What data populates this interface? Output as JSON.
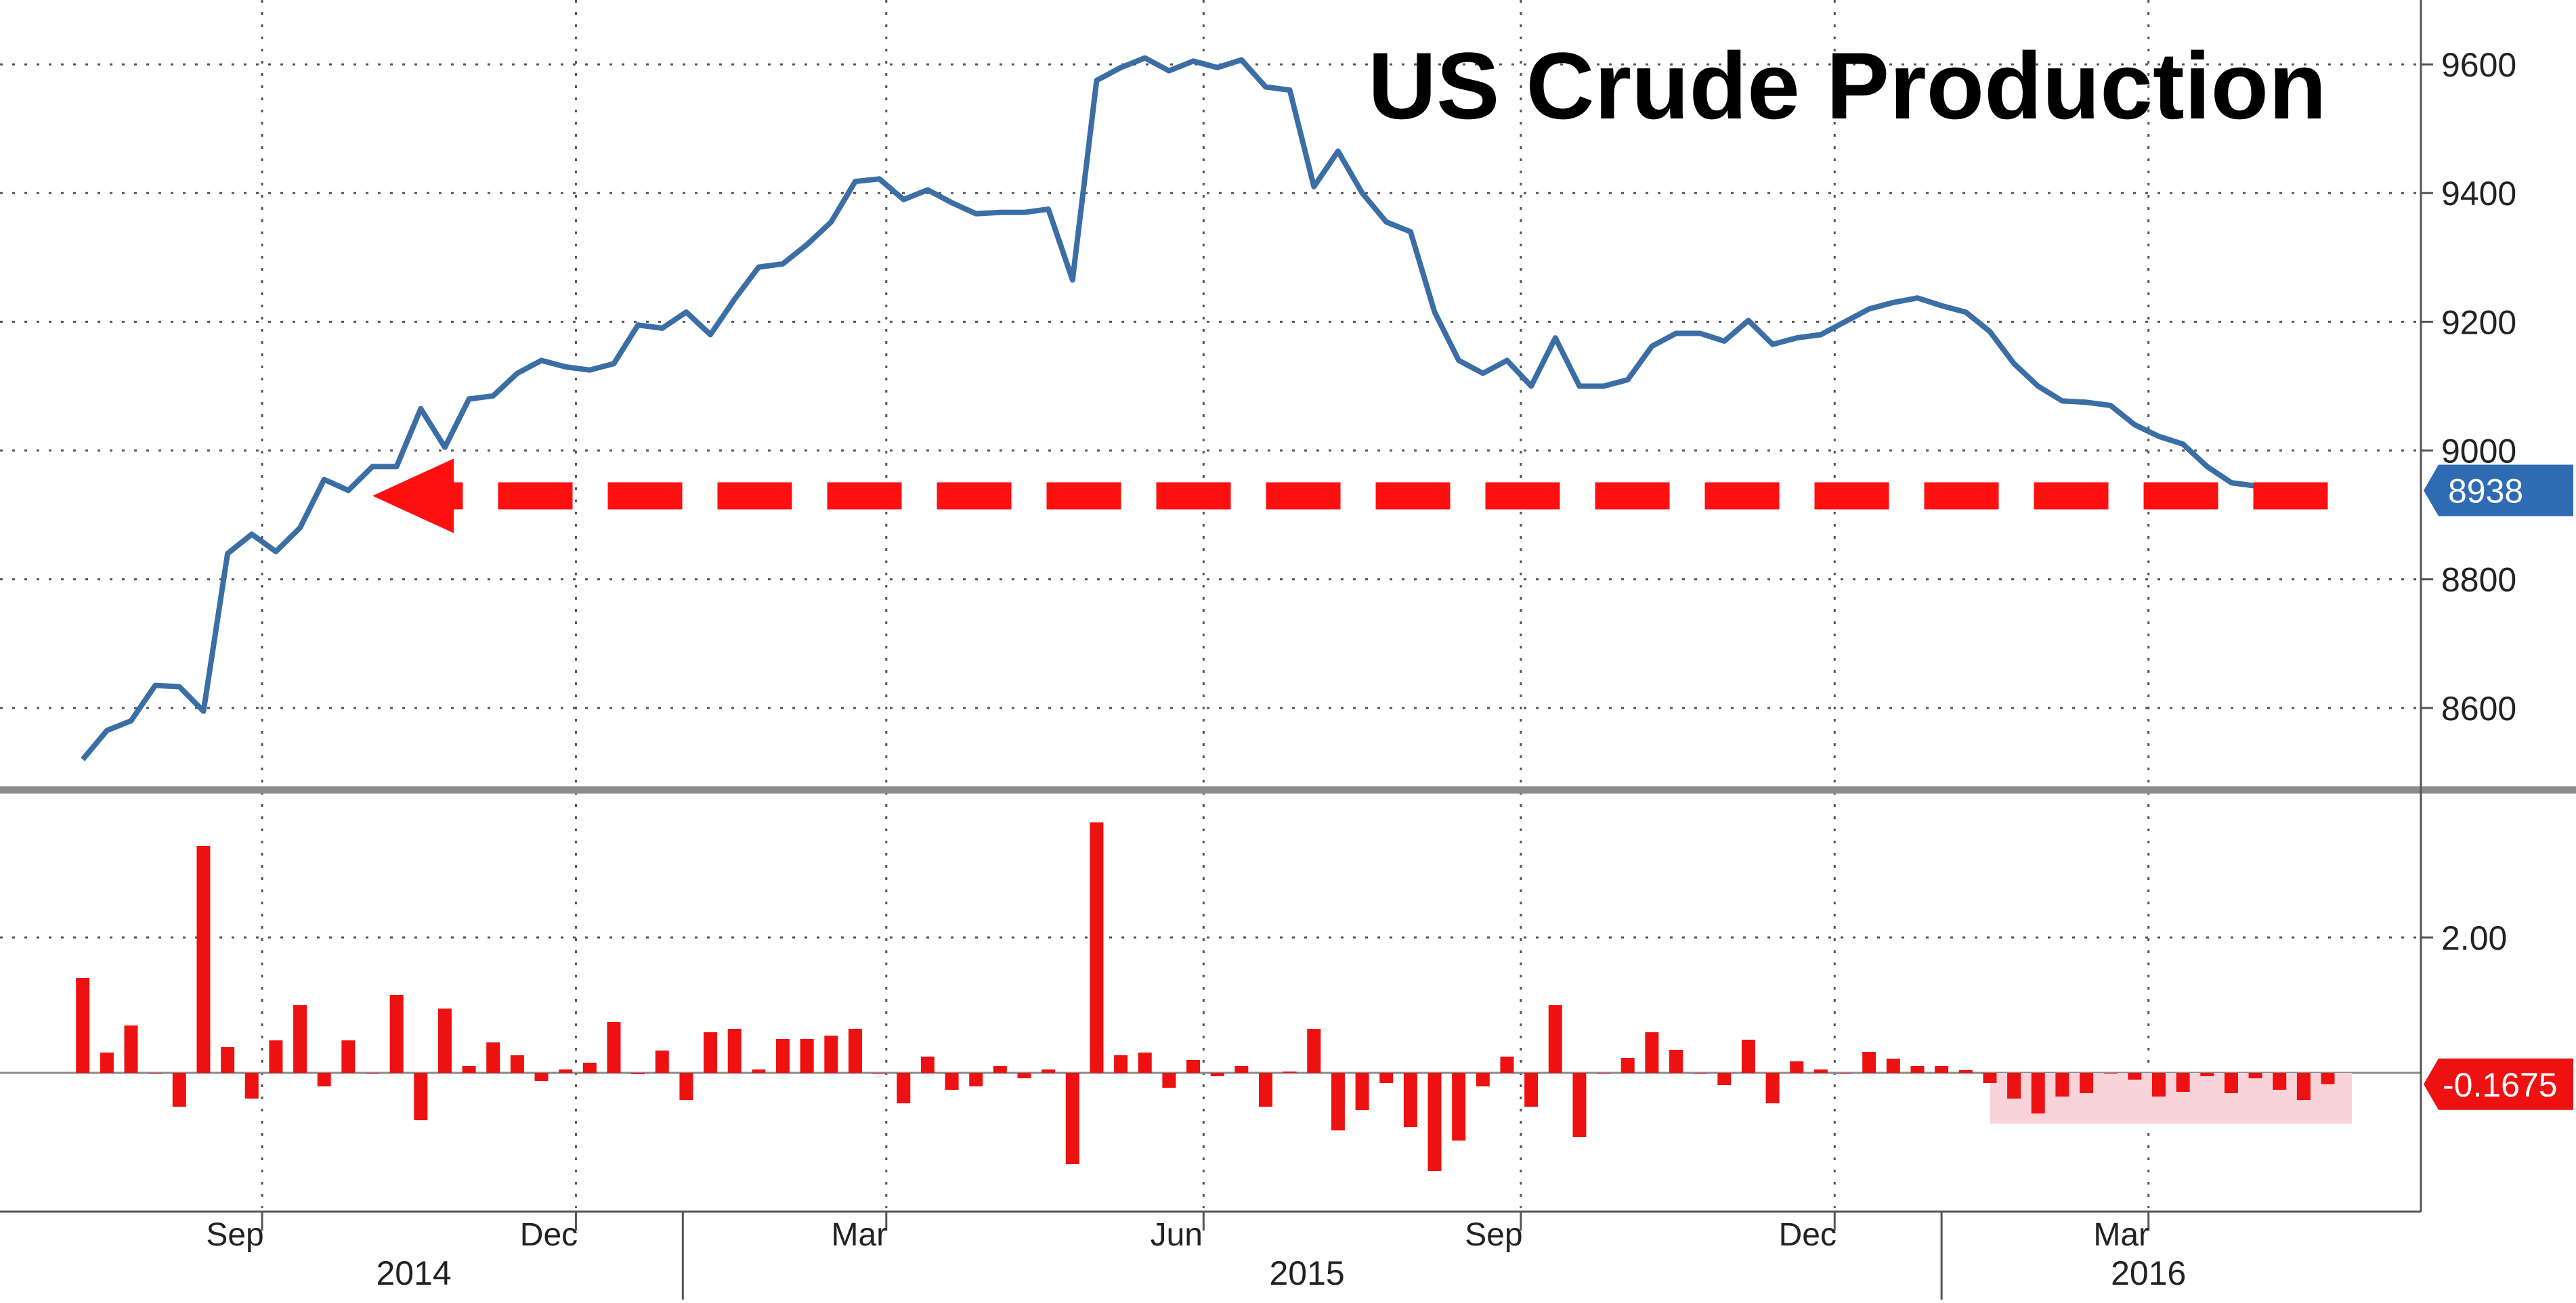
{
  "chart_data": [
    {
      "type": "line",
      "title": "US Crude Production",
      "ylim": [
        8480,
        9700
      ],
      "y_ticks": [
        8600,
        8800,
        9000,
        9200,
        9400,
        9600
      ],
      "y_tick_labels": [
        "8600",
        "8800",
        "9000",
        "9200",
        "9400",
        "9600"
      ],
      "axis_side": "right",
      "grid": true,
      "last_value_label": "8938",
      "series_color": "#3b6ea5",
      "annotation": {
        "type": "dashed-arrow",
        "color": "#ff1010",
        "from_date": "2016-04-22",
        "to_date": "2014-10-03",
        "value": 8938
      },
      "x": [
        "2014-07-11",
        "2014-07-18",
        "2014-07-25",
        "2014-08-01",
        "2014-08-08",
        "2014-08-15",
        "2014-08-22",
        "2014-08-29",
        "2014-09-05",
        "2014-09-12",
        "2014-09-19",
        "2014-09-26",
        "2014-10-03",
        "2014-10-10",
        "2014-10-17",
        "2014-10-24",
        "2014-10-31",
        "2014-11-07",
        "2014-11-14",
        "2014-11-21",
        "2014-11-28",
        "2014-12-05",
        "2014-12-12",
        "2014-12-19",
        "2014-12-26",
        "2015-01-02",
        "2015-01-09",
        "2015-01-16",
        "2015-01-23",
        "2015-01-30",
        "2015-02-06",
        "2015-02-13",
        "2015-02-20",
        "2015-02-27",
        "2015-03-06",
        "2015-03-13",
        "2015-03-20",
        "2015-03-27",
        "2015-04-03",
        "2015-04-10",
        "2015-04-17",
        "2015-04-24",
        "2015-05-01",
        "2015-05-08",
        "2015-05-15",
        "2015-05-22",
        "2015-05-29",
        "2015-06-05",
        "2015-06-12",
        "2015-06-19",
        "2015-06-26",
        "2015-07-03",
        "2015-07-10",
        "2015-07-17",
        "2015-07-24",
        "2015-07-31",
        "2015-08-07",
        "2015-08-14",
        "2015-08-21",
        "2015-08-28",
        "2015-09-04",
        "2015-09-11",
        "2015-09-18",
        "2015-09-25",
        "2015-10-02",
        "2015-10-09",
        "2015-10-16",
        "2015-10-23",
        "2015-10-30",
        "2015-11-06",
        "2015-11-13",
        "2015-11-20",
        "2015-11-27",
        "2015-12-04",
        "2015-12-11",
        "2015-12-18",
        "2015-12-25",
        "2016-01-01",
        "2016-01-08",
        "2016-01-15",
        "2016-01-22",
        "2016-01-29",
        "2016-02-05",
        "2016-02-12",
        "2016-02-19",
        "2016-02-26",
        "2016-03-04",
        "2016-03-11",
        "2016-03-18",
        "2016-03-25",
        "2016-04-01",
        "2016-04-08",
        "2016-04-15",
        "2016-04-22"
      ],
      "values": [
        8520,
        8565,
        8580,
        8635,
        8633,
        8595,
        8840,
        8870,
        8843,
        8880,
        8955,
        8938,
        8975,
        8975,
        9065,
        9005,
        9080,
        9085,
        9120,
        9140,
        9130,
        9125,
        9135,
        9195,
        9190,
        9215,
        9180,
        9235,
        9285,
        9290,
        9320,
        9355,
        9418,
        9422,
        9390,
        9405,
        9385,
        9368,
        9370,
        9370,
        9375,
        9265,
        9575,
        9595,
        9610,
        9590,
        9605,
        9595,
        9607,
        9565,
        9560,
        9410,
        9465,
        9400,
        9355,
        9340,
        9215,
        9140,
        9120,
        9140,
        9100,
        9175,
        9100,
        9100,
        9110,
        9162,
        9182,
        9182,
        9170,
        9202,
        9165,
        9175,
        9180,
        9200,
        9220,
        9230,
        9237,
        9225,
        9215,
        9185,
        9135,
        9100,
        9077,
        9075,
        9070,
        9040,
        9022,
        9010,
        8975,
        8950,
        8945,
        8942,
        8940,
        8938
      ]
    },
    {
      "type": "bar",
      "title": "",
      "ylim": [
        -2.0,
        4.1
      ],
      "y_ticks": [
        2.0
      ],
      "y_tick_labels": [
        "2.00"
      ],
      "axis_side": "right",
      "grid": true,
      "bar_color": "#ee1111",
      "highlight": {
        "from_date": "2016-01-15",
        "to_date": "2016-04-29",
        "color": "#f8d4da"
      },
      "last_value_label": "-0.1675",
      "x": [
        "2014-07-11",
        "2014-07-18",
        "2014-07-25",
        "2014-08-01",
        "2014-08-08",
        "2014-08-15",
        "2014-08-22",
        "2014-08-29",
        "2014-09-05",
        "2014-09-12",
        "2014-09-19",
        "2014-09-26",
        "2014-10-03",
        "2014-10-10",
        "2014-10-17",
        "2014-10-24",
        "2014-10-31",
        "2014-11-07",
        "2014-11-14",
        "2014-11-21",
        "2014-11-28",
        "2014-12-05",
        "2014-12-12",
        "2014-12-19",
        "2014-12-26",
        "2015-01-02",
        "2015-01-09",
        "2015-01-16",
        "2015-01-23",
        "2015-01-30",
        "2015-02-06",
        "2015-02-13",
        "2015-02-20",
        "2015-02-27",
        "2015-03-06",
        "2015-03-13",
        "2015-03-20",
        "2015-03-27",
        "2015-04-03",
        "2015-04-10",
        "2015-04-17",
        "2015-04-24",
        "2015-05-01",
        "2015-05-08",
        "2015-05-15",
        "2015-05-22",
        "2015-05-29",
        "2015-06-05",
        "2015-06-12",
        "2015-06-19",
        "2015-06-26",
        "2015-07-03",
        "2015-07-10",
        "2015-07-17",
        "2015-07-24",
        "2015-07-31",
        "2015-08-07",
        "2015-08-14",
        "2015-08-21",
        "2015-08-28",
        "2015-09-04",
        "2015-09-11",
        "2015-09-18",
        "2015-09-25",
        "2015-10-02",
        "2015-10-09",
        "2015-10-16",
        "2015-10-23",
        "2015-10-30",
        "2015-11-06",
        "2015-11-13",
        "2015-11-20",
        "2015-11-27",
        "2015-12-04",
        "2015-12-11",
        "2015-12-18",
        "2015-12-25",
        "2016-01-01",
        "2016-01-08",
        "2016-01-15",
        "2016-01-22",
        "2016-01-29",
        "2016-02-05",
        "2016-02-12",
        "2016-02-19",
        "2016-02-26",
        "2016-03-04",
        "2016-03-11",
        "2016-03-18",
        "2016-03-25",
        "2016-04-01",
        "2016-04-08",
        "2016-04-15",
        "2016-04-22"
      ],
      "values": [
        1.4,
        0.3,
        0.7,
        0.0,
        -0.5,
        3.35,
        0.38,
        -0.38,
        0.48,
        1.0,
        -0.2,
        0.48,
        0.0,
        1.15,
        -0.7,
        0.95,
        0.1,
        0.45,
        0.26,
        -0.12,
        0.05,
        0.15,
        0.75,
        -0.02,
        0.33,
        -0.4,
        0.6,
        0.65,
        0.05,
        0.5,
        0.5,
        0.55,
        0.65,
        0.0,
        -0.45,
        0.24,
        -0.25,
        -0.2,
        0.1,
        -0.08,
        0.05,
        -1.35,
        3.7,
        0.26,
        0.3,
        -0.22,
        0.19,
        -0.05,
        0.1,
        -0.5,
        0.02,
        0.65,
        -0.85,
        -0.55,
        -0.15,
        -0.8,
        -1.45,
        -1.0,
        -0.2,
        0.24,
        -0.5,
        1.0,
        -0.95,
        0.0,
        0.22,
        0.6,
        0.34,
        0.0,
        -0.18,
        0.49,
        -0.45,
        0.17,
        0.05,
        0.0,
        0.31,
        0.21,
        0.1,
        0.1,
        0.04,
        -0.15,
        -0.38,
        -0.6,
        -0.35,
        -0.3,
        0.0,
        -0.1,
        -0.35,
        -0.28,
        -0.05,
        -0.3,
        -0.08,
        -0.25,
        -0.4,
        -0.1675
      ]
    }
  ],
  "x_axis": {
    "month_ticks": [
      {
        "label": "Sep",
        "date": "2014-09-01"
      },
      {
        "label": "Dec",
        "date": "2014-12-01"
      },
      {
        "label": "Mar",
        "date": "2015-03-01"
      },
      {
        "label": "Jun",
        "date": "2015-06-01"
      },
      {
        "label": "Sep",
        "date": "2015-09-01"
      },
      {
        "label": "Dec",
        "date": "2015-12-01"
      },
      {
        "label": "Mar",
        "date": "2016-03-01"
      }
    ],
    "year_labels": [
      {
        "label": "2014",
        "date": "2014-10-15"
      },
      {
        "label": "2015",
        "date": "2015-07-01"
      },
      {
        "label": "2016",
        "date": "2016-03-01"
      }
    ]
  }
}
